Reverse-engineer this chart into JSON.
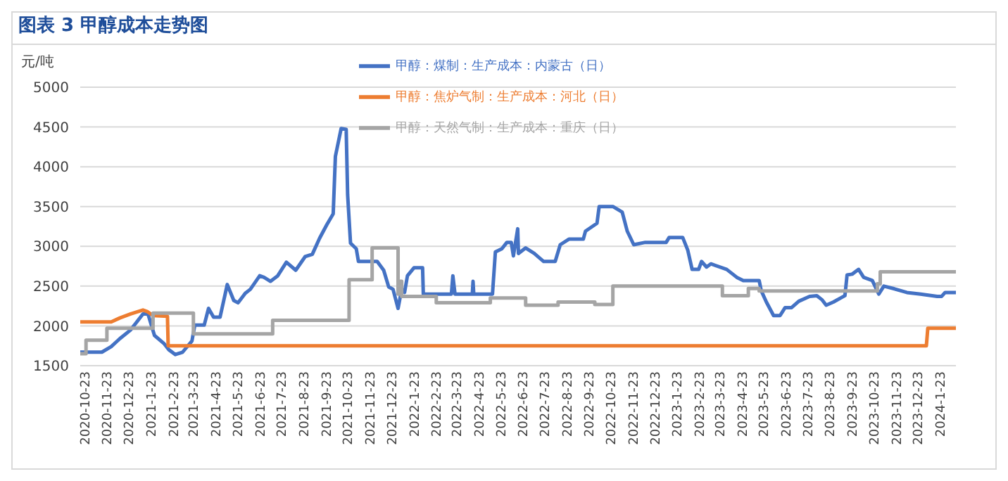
{
  "chart_data": {
    "type": "line",
    "title": "图表 3 甲醇成本走势图",
    "ylabel": "元/吨",
    "xlim": [
      "2020-10-23",
      "2024-02-20"
    ],
    "ylim": [
      1500,
      5000
    ],
    "yticks": [
      1500,
      2000,
      2500,
      3000,
      3500,
      4000,
      4500,
      5000
    ],
    "xticks": [
      {
        "value": "2020-10-23",
        "label": "2020-10-23"
      },
      {
        "value": "2020-11-23",
        "label": "2020-11-23"
      },
      {
        "value": "2020-12-23",
        "label": "2020-12-23"
      },
      {
        "value": "2021-01-23",
        "label": "2021-1-23"
      },
      {
        "value": "2021-02-23",
        "label": "2021-2-23"
      },
      {
        "value": "2021-03-23",
        "label": "2021-3-23"
      },
      {
        "value": "2021-04-23",
        "label": "2021-4-23"
      },
      {
        "value": "2021-05-23",
        "label": "2021-5-23"
      },
      {
        "value": "2021-06-23",
        "label": "2021-6-23"
      },
      {
        "value": "2021-07-23",
        "label": "2021-7-23"
      },
      {
        "value": "2021-08-23",
        "label": "2021-8-23"
      },
      {
        "value": "2021-09-23",
        "label": "2021-9-23"
      },
      {
        "value": "2021-10-23",
        "label": "2021-10-23"
      },
      {
        "value": "2021-11-23",
        "label": "2021-11-23"
      },
      {
        "value": "2021-12-23",
        "label": "2021-12-23"
      },
      {
        "value": "2022-01-23",
        "label": "2022-1-23"
      },
      {
        "value": "2022-02-23",
        "label": "2022-2-23"
      },
      {
        "value": "2022-03-23",
        "label": "2022-3-23"
      },
      {
        "value": "2022-04-23",
        "label": "2022-4-23"
      },
      {
        "value": "2022-05-23",
        "label": "2022-5-23"
      },
      {
        "value": "2022-06-23",
        "label": "2022-6-23"
      },
      {
        "value": "2022-07-23",
        "label": "2022-7-23"
      },
      {
        "value": "2022-08-23",
        "label": "2022-8-23"
      },
      {
        "value": "2022-09-23",
        "label": "2022-9-23"
      },
      {
        "value": "2022-10-23",
        "label": "2022-10-23"
      },
      {
        "value": "2022-11-23",
        "label": "2022-11-23"
      },
      {
        "value": "2022-12-23",
        "label": "2022-12-23"
      },
      {
        "value": "2023-01-23",
        "label": "2023-1-23"
      },
      {
        "value": "2023-02-23",
        "label": "2023-2-23"
      },
      {
        "value": "2023-03-23",
        "label": "2023-3-23"
      },
      {
        "value": "2023-04-23",
        "label": "2023-4-23"
      },
      {
        "value": "2023-05-23",
        "label": "2023-5-23"
      },
      {
        "value": "2023-06-23",
        "label": "2023-6-23"
      },
      {
        "value": "2023-07-23",
        "label": "2023-7-23"
      },
      {
        "value": "2023-08-23",
        "label": "2023-8-23"
      },
      {
        "value": "2023-09-23",
        "label": "2023-9-23"
      },
      {
        "value": "2023-10-23",
        "label": "2023-10-23"
      },
      {
        "value": "2023-11-23",
        "label": "2023-11-23"
      },
      {
        "value": "2023-12-23",
        "label": "2023-12-23"
      },
      {
        "value": "2024-01-23",
        "label": "2024-1-23"
      }
    ],
    "grid": "y",
    "legend": "top",
    "marker": "none",
    "line_style": "solid",
    "series": [
      {
        "name": "甲醇：煤制：生产成本：内蒙古（日）",
        "color": "#4472c4",
        "x": [
          "2020-10-23",
          "2020-11-22",
          "2020-12-05",
          "2020-12-17",
          "2021-01-01",
          "2021-01-18",
          "2021-01-25",
          "2021-02-03",
          "2021-02-16",
          "2021-02-23",
          "2021-03-04",
          "2021-03-14",
          "2021-03-27",
          "2021-03-31",
          "2021-04-13",
          "2021-04-19",
          "2021-04-26",
          "2021-05-05",
          "2021-05-15",
          "2021-05-24",
          "2021-05-30",
          "2021-06-09",
          "2021-06-16",
          "2021-06-29",
          "2021-07-05",
          "2021-07-14",
          "2021-07-24",
          "2021-08-05",
          "2021-08-18",
          "2021-08-31",
          "2021-09-10",
          "2021-09-20",
          "2021-09-30",
          "2021-10-09",
          "2021-10-12",
          "2021-10-20",
          "2021-10-27",
          "2021-10-29",
          "2021-11-02",
          "2021-11-10",
          "2021-11-13",
          "2021-12-09",
          "2021-12-18",
          "2021-12-25",
          "2021-12-31",
          "2022-01-07",
          "2022-01-12",
          "2022-01-16",
          "2022-01-20",
          "2022-01-29",
          "2022-02-10",
          "2022-02-11",
          "2022-03-22",
          "2022-03-24",
          "2022-03-27",
          "2022-04-20",
          "2022-04-21",
          "2022-04-22",
          "2022-05-18",
          "2022-05-22",
          "2022-05-31",
          "2022-06-07",
          "2022-06-13",
          "2022-06-16",
          "2022-06-22",
          "2022-06-23",
          "2022-07-03",
          "2022-07-15",
          "2022-07-28",
          "2022-08-13",
          "2022-08-20",
          "2022-09-01",
          "2022-09-21",
          "2022-09-24",
          "2022-10-10",
          "2022-10-13",
          "2022-11-01",
          "2022-11-14",
          "2022-11-21",
          "2022-11-30",
          "2022-12-16",
          "2023-01-14",
          "2023-01-18",
          "2023-02-06",
          "2023-02-13",
          "2023-02-19",
          "2023-02-28",
          "2023-03-04",
          "2023-03-11",
          "2023-03-17",
          "2023-04-08",
          "2023-04-22",
          "2023-05-01",
          "2023-05-23",
          "2023-05-26",
          "2023-06-02",
          "2023-06-12",
          "2023-06-21",
          "2023-06-28",
          "2023-07-07",
          "2023-07-17",
          "2023-08-01",
          "2023-08-11",
          "2023-08-18",
          "2023-08-24",
          "2023-09-03",
          "2023-09-19",
          "2023-09-22",
          "2023-09-29",
          "2023-10-08",
          "2023-10-15",
          "2023-10-27",
          "2023-11-05",
          "2023-11-12",
          "2023-11-25",
          "2023-12-14",
          "2024-01-02",
          "2024-01-25",
          "2024-01-31",
          "2024-02-05",
          "2024-02-20"
        ],
        "values": [
          1670,
          1670,
          1740,
          1840,
          1950,
          2150,
          2150,
          1880,
          1780,
          1700,
          1640,
          1670,
          1810,
          2010,
          2010,
          2220,
          2110,
          2110,
          2520,
          2320,
          2290,
          2410,
          2460,
          2630,
          2610,
          2560,
          2630,
          2800,
          2700,
          2870,
          2900,
          3100,
          3270,
          3410,
          4130,
          4480,
          4470,
          3650,
          3040,
          2970,
          2810,
          2810,
          2700,
          2490,
          2460,
          2220,
          2460,
          2420,
          2630,
          2730,
          2730,
          2400,
          2400,
          2630,
          2400,
          2400,
          2560,
          2400,
          2400,
          2930,
          2970,
          3050,
          3050,
          2880,
          3220,
          2910,
          2980,
          2910,
          2810,
          2810,
          3020,
          3090,
          3090,
          3190,
          3290,
          3500,
          3500,
          3430,
          3190,
          3020,
          3050,
          3050,
          3110,
          3110,
          2950,
          2710,
          2710,
          2810,
          2740,
          2780,
          2710,
          2610,
          2570,
          2570,
          2440,
          2300,
          2130,
          2130,
          2230,
          2230,
          2310,
          2370,
          2380,
          2330,
          2260,
          2300,
          2380,
          2640,
          2650,
          2710,
          2610,
          2570,
          2400,
          2500,
          2470,
          2420,
          2400,
          2370,
          2370,
          2420,
          2420
        ]
      },
      {
        "name": "甲醇：焦炉气制：生产成本：河北（日）",
        "color": "#ed7d31",
        "x": [
          "2020-10-23",
          "2020-12-05",
          "2020-12-17",
          "2021-01-01",
          "2021-01-18",
          "2021-01-24",
          "2021-02-01",
          "2021-02-21",
          "2021-02-22",
          "2024-01-10",
          "2024-01-12",
          "2024-02-20"
        ],
        "values": [
          2050,
          2050,
          2100,
          2150,
          2200,
          2180,
          2130,
          2120,
          1750,
          1750,
          1970,
          1970
        ]
      },
      {
        "name": "甲醇：天然气制：生产成本：重庆（日）",
        "color": "#a5a5a5",
        "type": "step",
        "x": [
          "2020-10-23",
          "2020-10-31",
          "2020-11-29",
          "2021-02-01",
          "2021-03-29",
          "2021-07-17",
          "2021-10-31",
          "2021-12-02",
          "2022-01-07",
          "2022-01-08",
          "2022-01-12",
          "2022-03-01",
          "2022-05-15",
          "2022-07-03",
          "2022-08-17",
          "2022-10-07",
          "2022-11-01",
          "2023-04-02",
          "2023-05-08",
          "2023-05-23",
          "2023-11-03",
          "2023-11-07",
          "2024-02-20"
        ],
        "values": [
          1650,
          1820,
          1970,
          2160,
          1900,
          2070,
          2580,
          2980,
          2400,
          2560,
          2370,
          2290,
          2350,
          2260,
          2300,
          2270,
          2500,
          2380,
          2470,
          2440,
          2530,
          2680,
          2680
        ]
      }
    ]
  }
}
